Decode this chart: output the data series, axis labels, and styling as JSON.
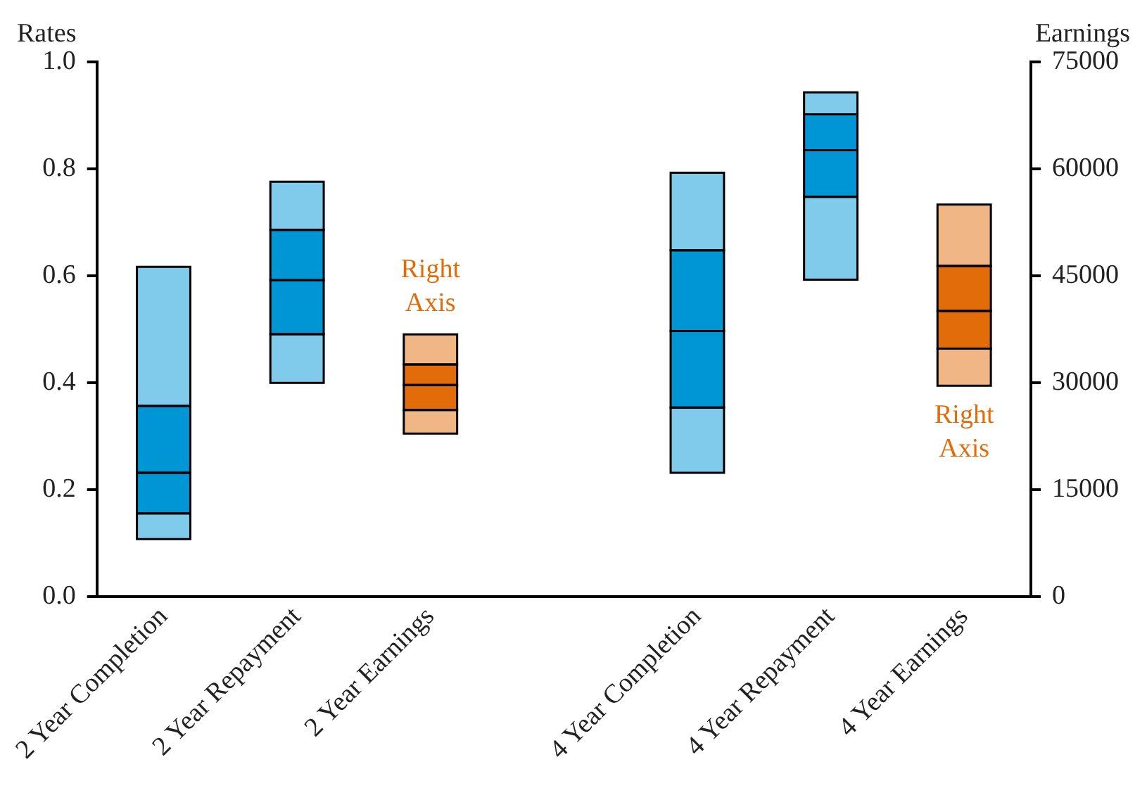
{
  "chart_data": {
    "type": "bar",
    "stacked": true,
    "ylabel": "Rates",
    "y2label": "Earnings",
    "categories": [
      "2 Year Completion",
      "2 Year Repayment",
      "2 Year Earnings",
      null,
      "4 Year Completion",
      "4 Year Repayment",
      "4 Year Earnings"
    ],
    "series": [
      {
        "color": "#80cbeb",
        "base": [
          0.108,
          0.4,
          null,
          null,
          0.232,
          0.593,
          null
        ],
        "values": [
          0.048,
          0.091,
          null,
          null,
          0.122,
          0.155,
          null
        ]
      },
      {
        "color": "#0096d6",
        "values": [
          0.076,
          0.101,
          null,
          null,
          0.143,
          0.087,
          null
        ]
      },
      {
        "color": "#0096d6",
        "values": [
          0.125,
          0.094,
          null,
          null,
          0.151,
          0.067,
          null
        ]
      },
      {
        "color": "#80cbeb",
        "values": [
          0.26,
          0.09,
          null,
          null,
          0.145,
          0.041,
          null
        ]
      },
      {
        "color": "#f1b685",
        "axis": "y2",
        "base": [
          null,
          null,
          22900,
          null,
          null,
          null,
          29600
        ],
        "values": [
          null,
          null,
          3300,
          null,
          null,
          null,
          5200
        ]
      },
      {
        "color": "#e36c0a",
        "axis": "y2",
        "values": [
          null,
          null,
          3500,
          null,
          null,
          null,
          5300
        ]
      },
      {
        "color": "#e36c0a",
        "axis": "y2",
        "values": [
          null,
          null,
          2900,
          null,
          null,
          null,
          6300
        ]
      },
      {
        "color": "#f1b685",
        "axis": "y2",
        "values": [
          null,
          null,
          4200,
          null,
          null,
          null,
          8600
        ]
      }
    ],
    "ylim": [
      0,
      1
    ],
    "yticks": [
      {
        "value": 0,
        "label": "0.0"
      },
      0.2,
      0.4,
      0.6,
      0.8,
      {
        "value": 1,
        "label": "1.0"
      }
    ],
    "y2lim": [
      0,
      75000
    ],
    "y2ticks": [
      0,
      15000,
      30000,
      45000,
      60000,
      75000
    ],
    "annotations": [
      "Right Axis",
      "Right Axis"
    ],
    "grid": false,
    "legend": false
  }
}
